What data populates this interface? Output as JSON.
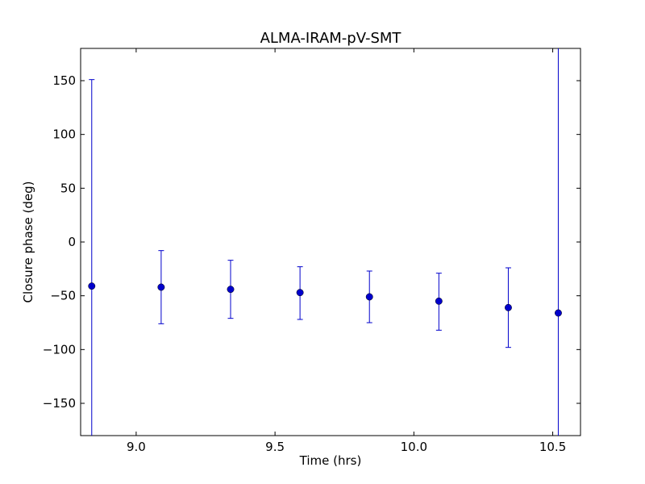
{
  "chart_data": {
    "type": "scatter",
    "title": "ALMA-IRAM-pV-SMT",
    "xlabel": "Time (hrs)",
    "ylabel": "Closure phase (deg)",
    "xlim": [
      8.8,
      10.6
    ],
    "ylim": [
      -180,
      180
    ],
    "xticks": [
      9.0,
      9.5,
      10.0,
      10.5
    ],
    "xtick_labels": [
      "9.0",
      "9.5",
      "10.0",
      "10.5"
    ],
    "yticks": [
      150,
      100,
      50,
      0,
      -50,
      -100,
      -150
    ],
    "ytick_labels": [
      "150",
      "100",
      "50",
      "0",
      "−50",
      "−100",
      "−150"
    ],
    "grid": false,
    "series": [
      {
        "color": "#0000cc",
        "x": [
          8.84,
          9.09,
          9.34,
          9.59,
          9.84,
          10.09,
          10.34,
          10.52
        ],
        "y": [
          -41,
          -42,
          -44,
          -47,
          -51,
          -55,
          -61,
          -66
        ],
        "yerr_low": [
          -180,
          -76,
          -71,
          -72,
          -75,
          -82,
          -98,
          -180
        ],
        "yerr_high": [
          151,
          -8,
          -17,
          -23,
          -27,
          -29,
          -24,
          180
        ]
      }
    ]
  }
}
